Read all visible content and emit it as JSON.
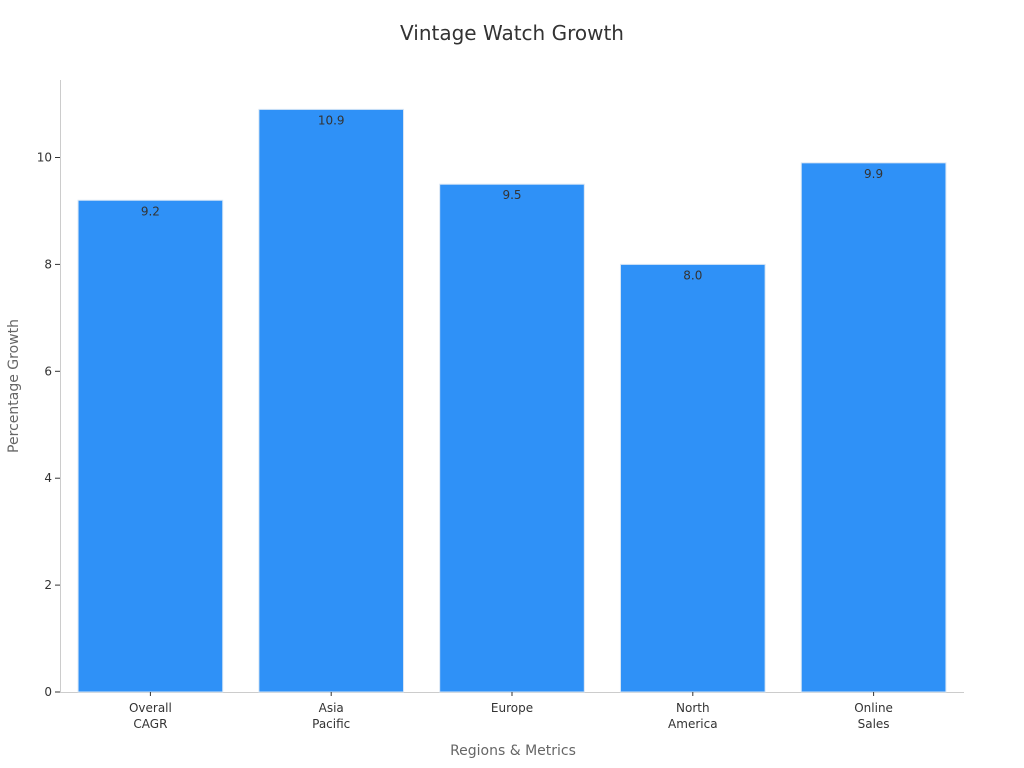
{
  "chart_data": {
    "type": "bar",
    "title": "Vintage Watch Growth",
    "xlabel": "Regions & Metrics",
    "ylabel": "Percentage Growth",
    "categories": [
      [
        "Overall",
        "CAGR"
      ],
      [
        "Asia",
        "Pacific"
      ],
      [
        "Europe"
      ],
      [
        "North",
        "America"
      ],
      [
        "Online",
        "Sales"
      ]
    ],
    "values": [
      9.2,
      10.9,
      9.5,
      8.0,
      9.9
    ],
    "value_labels": [
      "9.2",
      "10.9",
      "9.5",
      "8.0",
      "9.9"
    ],
    "yticks": [
      0,
      2,
      4,
      6,
      8,
      10
    ],
    "ylim": [
      0,
      11.45
    ],
    "bar_color": "#2f91f7",
    "bar_edge_color": "#d8e6f5",
    "grid": false,
    "legend": "none"
  }
}
